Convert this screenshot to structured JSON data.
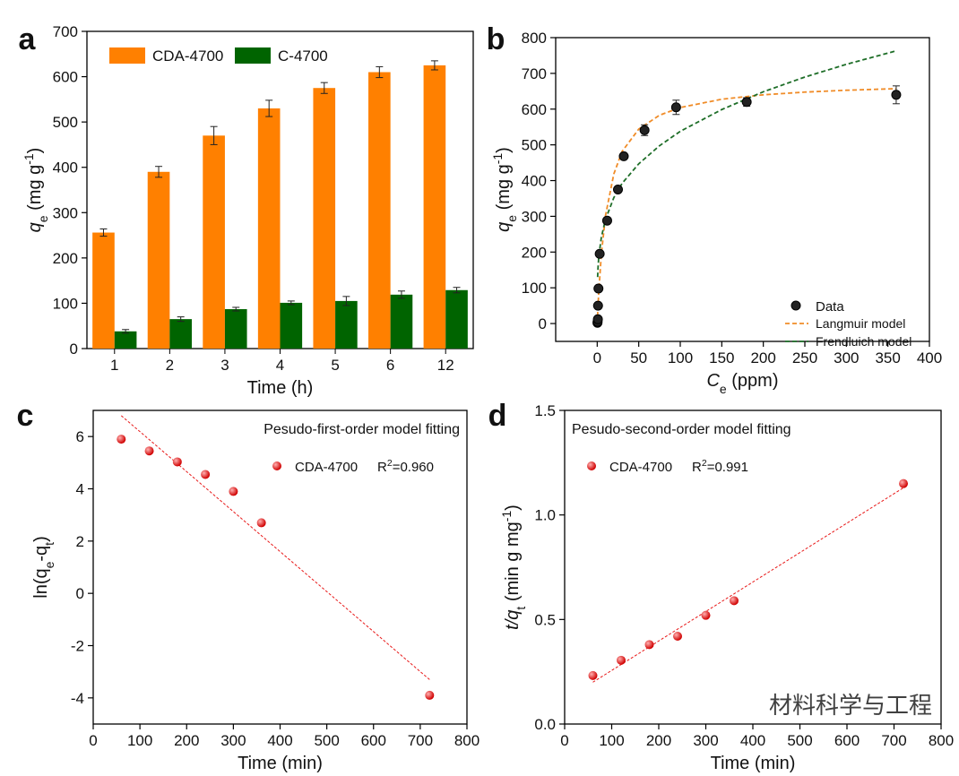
{
  "chart_data": [
    {
      "type": "bar",
      "panel": "a",
      "categories": [
        "1",
        "2",
        "3",
        "4",
        "5",
        "6",
        "12"
      ],
      "series": [
        {
          "name": "CDA-4700",
          "color": "#ff8000",
          "values": [
            256,
            390,
            470,
            530,
            575,
            610,
            625
          ],
          "errors": [
            8,
            12,
            20,
            18,
            12,
            12,
            10
          ]
        },
        {
          "name": "C-4700",
          "color": "#006400",
          "values": [
            38,
            65,
            87,
            101,
            105,
            119,
            129
          ],
          "errors": [
            4,
            5,
            4,
            4,
            10,
            8,
            6
          ]
        }
      ],
      "ylim": [
        0,
        700
      ],
      "yticks": [
        0,
        100,
        200,
        300,
        400,
        500,
        600,
        700
      ],
      "xlabel": [
        {
          "text": "Time (h)",
          "style": "normal"
        }
      ],
      "ylabel": [
        {
          "text": "q",
          "style": "italic"
        },
        {
          "text": "e",
          "style": "sub"
        },
        {
          "text": " (mg g",
          "style": "normal"
        },
        {
          "text": "-1",
          "style": "sup"
        },
        {
          "text": ")",
          "style": "normal"
        }
      ]
    },
    {
      "type": "scatter",
      "panel": "b",
      "series": [
        {
          "name": "Data",
          "color": "#222222",
          "x": [
            0.3,
            0.5,
            0.8,
            1,
            1.5,
            3,
            12,
            25,
            32,
            57,
            95,
            180,
            360
          ],
          "values": [
            2,
            5,
            12,
            50,
            98,
            195,
            288,
            375,
            468,
            541,
            605,
            620,
            640
          ],
          "errors": [
            3,
            3,
            3,
            3,
            3,
            5,
            5,
            6,
            5,
            15,
            20,
            12,
            25
          ]
        }
      ],
      "lines": [
        {
          "name": "Langmuir model",
          "color": "#f08c28",
          "x": [
            0,
            1,
            2,
            5,
            10,
            20,
            30,
            50,
            75,
            100,
            150,
            200,
            250,
            300,
            360
          ],
          "y": [
            0,
            50.4,
            93.8,
            194.3,
            302.2,
            418.5,
            481.7,
            544,
            582.9,
            604.4,
            627.7,
            640,
            647.6,
            652.8,
            657.2
          ]
        },
        {
          "name": "Frendluich model",
          "color": "#1e6e28",
          "x": [
            0.5,
            1,
            2,
            5,
            10,
            20,
            30,
            50,
            75,
            100,
            150,
            200,
            250,
            300,
            360
          ],
          "y": [
            130,
            157,
            189.6,
            241.6,
            291.6,
            352.2,
            392.3,
            446.9,
            497.4,
            537.9,
            598.8,
            648.5,
            689.7,
            725.4,
            763
          ]
        }
      ],
      "legend": "lower right",
      "xlim": [
        -50,
        400
      ],
      "xticks": [
        0,
        50,
        100,
        150,
        200,
        250,
        300,
        350,
        400
      ],
      "ylim": [
        -50,
        800
      ],
      "yticks": [
        0,
        100,
        200,
        300,
        400,
        500,
        600,
        700,
        800
      ],
      "xlabel": [
        {
          "text": "C",
          "style": "italic"
        },
        {
          "text": "e",
          "style": "sub"
        },
        {
          "text": " (ppm)",
          "style": "normal"
        }
      ],
      "ylabel": [
        {
          "text": "q",
          "style": "italic"
        },
        {
          "text": "e",
          "style": "sub"
        },
        {
          "text": " (mg g",
          "style": "normal"
        },
        {
          "text": "-1",
          "style": "sup"
        },
        {
          "text": ")",
          "style": "normal"
        }
      ]
    },
    {
      "type": "scatter",
      "panel": "c",
      "annotation": "Pesudo-first-order model fitting",
      "series": [
        {
          "name": "CDA-4700",
          "color": "#e81818",
          "x": [
            60,
            120,
            180,
            240,
            300,
            360,
            720
          ],
          "values": [
            5.9,
            5.45,
            5.03,
            4.55,
            3.9,
            2.7,
            -3.9
          ]
        }
      ],
      "r2": [
        {
          "text": "R",
          "style": "normal"
        },
        {
          "text": "2",
          "style": "sup"
        },
        {
          "text": "=0.960",
          "style": "normal"
        }
      ],
      "fit": {
        "color": "#e81818",
        "x": [
          60,
          720
        ],
        "y": [
          6.8,
          -3.3
        ]
      },
      "xlim": [
        0,
        800
      ],
      "xticks": [
        0,
        100,
        200,
        300,
        400,
        500,
        600,
        700,
        800
      ],
      "ylim": [
        -5,
        7
      ],
      "yticks": [
        -4,
        -2,
        0,
        2,
        4,
        6
      ],
      "xlabel": [
        {
          "text": "Time (min)",
          "style": "normal"
        }
      ],
      "ylabel": [
        {
          "text": "ln(q",
          "style": "normal"
        },
        {
          "text": "e",
          "style": "sub"
        },
        {
          "text": "-q",
          "style": "normal"
        },
        {
          "text": "t",
          "style": "sub"
        },
        {
          "text": ")",
          "style": "normal"
        }
      ]
    },
    {
      "type": "scatter",
      "panel": "d",
      "annotation": "Pesudo-second-order model fitting",
      "watermark": "材料科学与工程",
      "series": [
        {
          "name": "CDA-4700",
          "color": "#e81818",
          "x": [
            60,
            120,
            180,
            240,
            300,
            360,
            720
          ],
          "values": [
            0.232,
            0.305,
            0.38,
            0.42,
            0.52,
            0.59,
            1.15
          ]
        }
      ],
      "r2": [
        {
          "text": "R",
          "style": "normal"
        },
        {
          "text": "2",
          "style": "sup"
        },
        {
          "text": "=0.991",
          "style": "normal"
        }
      ],
      "fit": {
        "color": "#e81818",
        "x": [
          60,
          720
        ],
        "y": [
          0.2,
          1.13
        ]
      },
      "xlim": [
        0,
        800
      ],
      "xticks": [
        0,
        100,
        200,
        300,
        400,
        500,
        600,
        700,
        800
      ],
      "ylim": [
        0,
        1.5
      ],
      "yticks": [
        {
          "value": 0,
          "label": "0.0"
        },
        0.5,
        {
          "value": 1,
          "label": "1.0"
        },
        1.5
      ],
      "xlabel": [
        {
          "text": "Time (min)",
          "style": "normal"
        }
      ],
      "ylabel": [
        {
          "text": "t/q",
          "style": "italic"
        },
        {
          "text": "t",
          "style": "sub"
        },
        {
          "text": " (min g mg",
          "style": "normal"
        },
        {
          "text": "-1",
          "style": "sup"
        },
        {
          "text": ")",
          "style": "normal"
        }
      ]
    }
  ]
}
